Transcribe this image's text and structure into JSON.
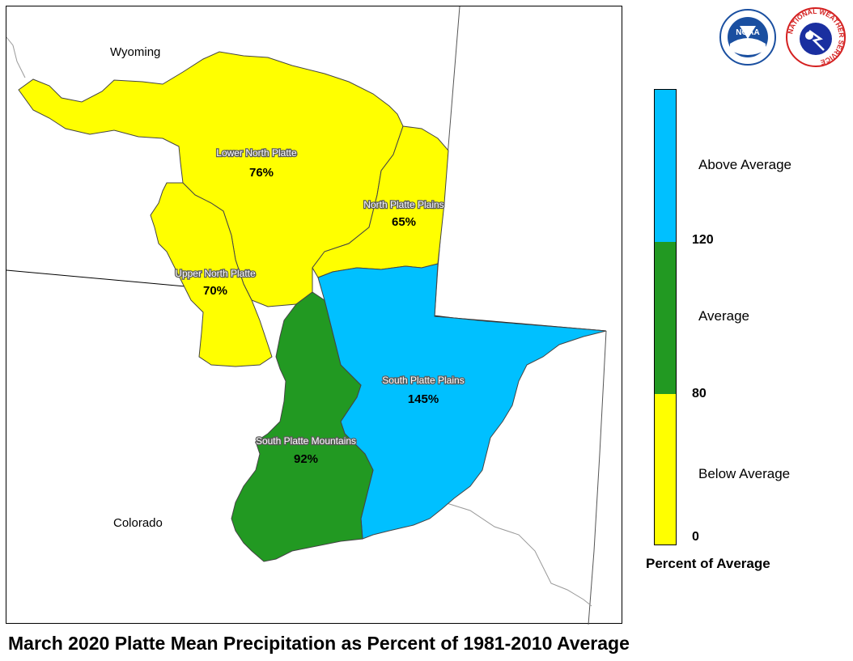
{
  "title": "March 2020 Platte Mean Precipitation as Percent of 1981-2010 Average",
  "states": [
    {
      "name": "Wyoming"
    },
    {
      "name": "Colorado"
    }
  ],
  "basins": [
    {
      "name": "Lower North Platte",
      "value": "76%",
      "category": "Below Average"
    },
    {
      "name": "North Platte Plains",
      "value": "65%",
      "category": "Below Average"
    },
    {
      "name": "Upper North Platte",
      "value": "70%",
      "category": "Below Average"
    },
    {
      "name": "South Platte Plains",
      "value": "145%",
      "category": "Above Average"
    },
    {
      "name": "South Platte Mountains",
      "value": "92%",
      "category": "Average"
    }
  ],
  "legend": {
    "title": "Percent of Average",
    "categories": [
      {
        "label": "Above Average",
        "color": "#00c0ff",
        "range": [
          120,
          null
        ]
      },
      {
        "label": "Average",
        "color": "#229922",
        "range": [
          80,
          120
        ]
      },
      {
        "label": "Below Average",
        "color": "#ffff00",
        "range": [
          0,
          80
        ]
      }
    ],
    "ticks": [
      "120",
      "80",
      "0"
    ]
  },
  "logos": [
    {
      "name": "noaa-logo",
      "text": "NOAA",
      "color": "#1a4fa0"
    },
    {
      "name": "nws-logo",
      "ring_text": "NATIONAL WEATHER SERVICE",
      "color": "#d42020"
    }
  ]
}
